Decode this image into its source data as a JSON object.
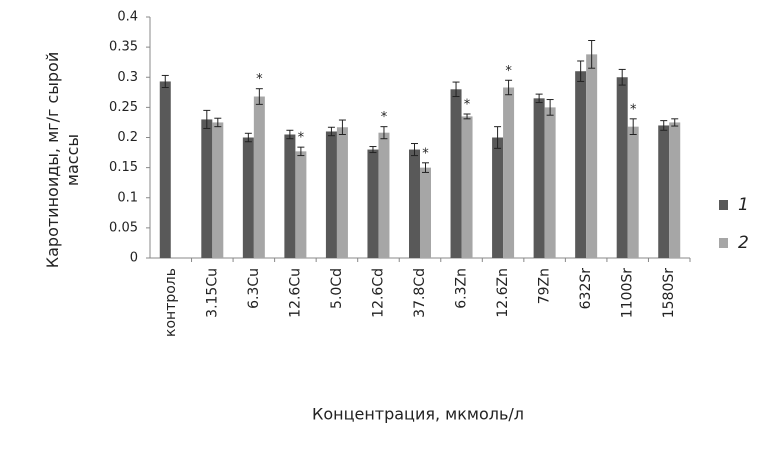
{
  "chart_data": {
    "type": "bar",
    "y_label": "Каротиноиды, мг/г сырой массы",
    "x_label": "Концентрация, мкмоль/л",
    "categories": [
      "контроль",
      "3.15Cu",
      "6.3Cu",
      "12.6Cu",
      "5.0Cd",
      "12.6Cd",
      "37.8Cd",
      "6.3Zn",
      "12.6Zn",
      "79Zn",
      "632Sr",
      "1100Sr",
      "1580Sr"
    ],
    "series": [
      {
        "name": "1",
        "color": "#595959",
        "values": [
          0.293,
          0.23,
          0.2,
          0.205,
          0.21,
          0.18,
          0.18,
          0.28,
          0.2,
          0.265,
          0.31,
          0.3,
          0.22
        ],
        "errors": [
          0.01,
          0.015,
          0.007,
          0.007,
          0.007,
          0.005,
          0.01,
          0.012,
          0.018,
          0.007,
          0.017,
          0.013,
          0.008
        ]
      },
      {
        "name": "2",
        "color": "#a6a6a6",
        "values": [
          null,
          0.225,
          0.268,
          0.177,
          0.217,
          0.208,
          0.15,
          0.235,
          0.283,
          0.25,
          0.338,
          0.218,
          0.225
        ],
        "errors": [
          null,
          0.007,
          0.013,
          0.007,
          0.012,
          0.01,
          0.008,
          0.004,
          0.012,
          0.013,
          0.023,
          0.013,
          0.006
        ],
        "annotations": [
          null,
          null,
          "*",
          "*",
          null,
          "*",
          "*",
          "*",
          "*",
          null,
          null,
          "*",
          null
        ]
      }
    ],
    "ylim": [
      0,
      0.4
    ],
    "yticks": [
      0,
      0.05,
      0.1,
      0.15,
      0.2,
      0.25,
      0.3,
      0.35,
      0.4
    ],
    "grid": false,
    "legend": "right"
  }
}
